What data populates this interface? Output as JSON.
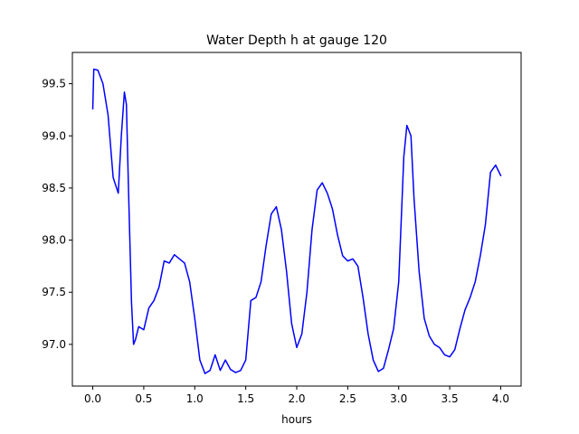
{
  "chart_data": {
    "type": "line",
    "title": "Water Depth h at gauge 120",
    "xlabel": "hours",
    "ylabel": "",
    "xlim": [
      -0.2,
      4.2
    ],
    "ylim": [
      96.6,
      99.8
    ],
    "xticks": [
      0.0,
      0.5,
      1.0,
      1.5,
      2.0,
      2.5,
      3.0,
      3.5,
      4.0
    ],
    "xtick_labels": [
      "0.0",
      "0.5",
      "1.0",
      "1.5",
      "2.0",
      "2.5",
      "3.0",
      "3.5",
      "4.0"
    ],
    "yticks": [
      97.0,
      97.5,
      98.0,
      98.5,
      99.0,
      99.5
    ],
    "ytick_labels": [
      "97.0",
      "97.5",
      "98.0",
      "98.5",
      "99.0",
      "99.5"
    ],
    "grid": false,
    "series": [
      {
        "color": "#0000ff",
        "x": [
          0.0,
          0.01,
          0.05,
          0.1,
          0.15,
          0.2,
          0.25,
          0.28,
          0.31,
          0.33,
          0.35,
          0.38,
          0.4,
          0.42,
          0.45,
          0.5,
          0.55,
          0.6,
          0.65,
          0.7,
          0.75,
          0.8,
          0.85,
          0.9,
          0.95,
          1.0,
          1.05,
          1.1,
          1.15,
          1.2,
          1.25,
          1.3,
          1.35,
          1.4,
          1.45,
          1.5,
          1.55,
          1.6,
          1.65,
          1.7,
          1.75,
          1.8,
          1.85,
          1.9,
          1.95,
          2.0,
          2.05,
          2.1,
          2.15,
          2.2,
          2.25,
          2.3,
          2.35,
          2.4,
          2.45,
          2.5,
          2.55,
          2.6,
          2.65,
          2.7,
          2.75,
          2.8,
          2.85,
          2.9,
          2.95,
          3.0,
          3.05,
          3.08,
          3.12,
          3.15,
          3.2,
          3.25,
          3.3,
          3.35,
          3.4,
          3.45,
          3.5,
          3.55,
          3.6,
          3.65,
          3.7,
          3.75,
          3.8,
          3.85,
          3.9,
          3.95,
          4.0
        ],
        "y": [
          99.26,
          99.64,
          99.63,
          99.5,
          99.2,
          98.6,
          98.45,
          99.0,
          99.42,
          99.3,
          98.5,
          97.4,
          97.0,
          97.05,
          97.17,
          97.14,
          97.35,
          97.42,
          97.55,
          97.8,
          97.78,
          97.86,
          97.82,
          97.78,
          97.6,
          97.25,
          96.85,
          96.72,
          96.75,
          96.9,
          96.75,
          96.85,
          96.76,
          96.73,
          96.75,
          96.85,
          97.42,
          97.45,
          97.6,
          97.95,
          98.25,
          98.32,
          98.1,
          97.7,
          97.2,
          96.97,
          97.1,
          97.5,
          98.1,
          98.48,
          98.55,
          98.45,
          98.3,
          98.05,
          97.85,
          97.8,
          97.82,
          97.75,
          97.45,
          97.1,
          96.85,
          96.74,
          96.77,
          96.95,
          97.15,
          97.6,
          98.8,
          99.1,
          99.0,
          98.4,
          97.7,
          97.25,
          97.08,
          97.0,
          96.97,
          96.9,
          96.88,
          96.95,
          97.15,
          97.33,
          97.45,
          97.6,
          97.85,
          98.15,
          98.65,
          98.72,
          98.62
        ]
      }
    ]
  }
}
